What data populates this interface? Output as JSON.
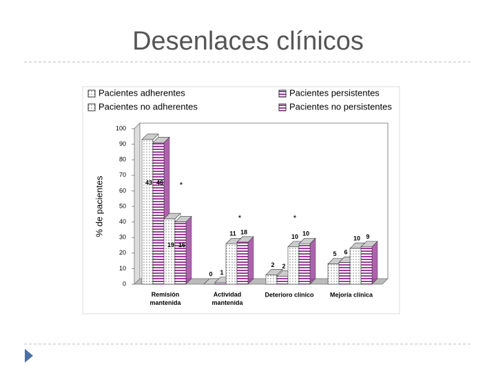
{
  "chart_data": {
    "type": "bar3d",
    "title": "Desenlaces clínicos",
    "y_label": "% de pacientes",
    "categories": [
      "Remisión mantenida",
      "Actividad mantenida",
      "Deterioro clínico",
      "Mejoría clínica"
    ],
    "series": [
      {
        "name": "Pacientes adherentes",
        "color": "#ffffff",
        "pattern": "dots",
        "values": [
          93,
          0,
          6,
          13
        ],
        "counts": [
          43,
          0,
          2,
          5
        ]
      },
      {
        "name": "Pacientes persistentes",
        "color": "#9b3a9b",
        "pattern": "stripes",
        "values": [
          91,
          1,
          5,
          14
        ],
        "counts": [
          46,
          1,
          2,
          6
        ]
      },
      {
        "name": "Pacientes no adherentes",
        "color": "#ffffff",
        "pattern": "dots",
        "values": [
          42,
          26,
          24,
          23
        ],
        "counts": [
          19,
          11,
          10,
          10
        ]
      },
      {
        "name": "Pacientes no persistentes",
        "color": "#9b3a9b",
        "pattern": "stripes",
        "values": [
          40,
          27,
          26,
          24
        ],
        "counts": [
          16,
          18,
          10,
          9
        ]
      }
    ],
    "annotations": [
      "*",
      "*",
      "*"
    ],
    "ylim": [
      0,
      100
    ],
    "yticks": [
      0,
      10,
      20,
      30,
      40,
      50,
      60,
      70,
      80,
      90,
      100
    ]
  }
}
